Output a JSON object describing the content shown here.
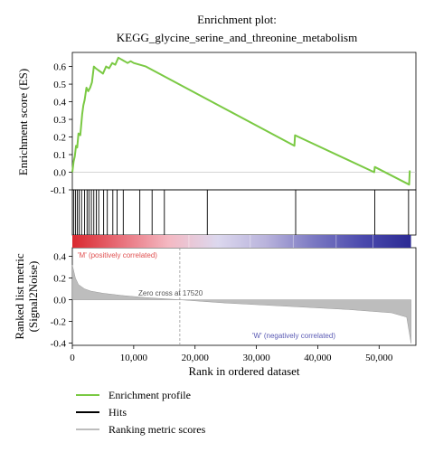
{
  "chart_data": {
    "type": "line",
    "title_line1": "Enrichment plot:",
    "title_line2": "KEGG_glycine_serine_and_threonine_metabolism",
    "xlabel": "Rank in ordered dataset",
    "x_ticks": [
      "0",
      "10,000",
      "20,000",
      "30,000",
      "40,000",
      "50,000"
    ],
    "x_tick_values": [
      0,
      10000,
      20000,
      30000,
      40000,
      50000
    ],
    "xlim": [
      0,
      56000
    ],
    "es_panel": {
      "ylabel": "Enrichment score (ES)",
      "ylim": [
        -0.1,
        0.68
      ],
      "y_ticks": [
        "0.6",
        "0.5",
        "0.4",
        "0.3",
        "0.2",
        "0.1",
        "0.0",
        "-0.1"
      ],
      "y_tick_values": [
        0.6,
        0.5,
        0.4,
        0.3,
        0.2,
        0.1,
        0.0,
        -0.1
      ],
      "x": [
        0,
        200,
        400,
        600,
        800,
        1000,
        1300,
        1600,
        1800,
        2000,
        2300,
        2600,
        2900,
        3200,
        3500,
        3800,
        4200,
        4600,
        5000,
        5500,
        6000,
        6500,
        7000,
        7500,
        8000,
        8500,
        9000,
        9500,
        10000,
        12000,
        36200,
        36300,
        49200,
        49300,
        54900,
        55000
      ],
      "y": [
        0.0,
        0.06,
        0.09,
        0.15,
        0.14,
        0.22,
        0.21,
        0.33,
        0.38,
        0.41,
        0.48,
        0.46,
        0.48,
        0.51,
        0.6,
        0.59,
        0.58,
        0.57,
        0.56,
        0.6,
        0.59,
        0.62,
        0.61,
        0.65,
        0.64,
        0.63,
        0.62,
        0.63,
        0.62,
        0.6,
        0.15,
        0.21,
        0.0,
        0.03,
        -0.07,
        0.01
      ]
    },
    "hits": [
      200,
      500,
      800,
      1100,
      1500,
      2000,
      2400,
      2700,
      3100,
      3500,
      3900,
      4300,
      5100,
      5700,
      6600,
      7300,
      8300,
      11000,
      13000,
      15000,
      22000,
      36400,
      49300,
      54800
    ],
    "ranking_bar": {
      "color_stops": [
        "#d9282f",
        "#e8707a",
        "#f4b9c3",
        "#dcd8ee",
        "#b9b3dc",
        "#7a78c2",
        "#4b4aad",
        "#2b2a93"
      ]
    },
    "metric_panel": {
      "ylabel_line1": "Ranked list metric",
      "ylabel_line2": "(Signal2Noise)",
      "ylim": [
        -0.42,
        0.48
      ],
      "y_ticks": [
        "0.4",
        "0.2",
        "0.0",
        "-0.2",
        "-0.4"
      ],
      "y_tick_values": [
        0.4,
        0.2,
        0.0,
        -0.2,
        -0.4
      ],
      "x": [
        0,
        500,
        1000,
        2000,
        3000,
        5000,
        8000,
        12000,
        17520,
        25000,
        35000,
        45000,
        52000,
        54500,
        55200
      ],
      "y": [
        0.32,
        0.2,
        0.14,
        0.1,
        0.08,
        0.06,
        0.04,
        0.02,
        0.0,
        -0.03,
        -0.06,
        -0.09,
        -0.12,
        -0.16,
        -0.4
      ],
      "zero_cross_label": "Zero cross at 17520",
      "zero_cross_x": 17520,
      "pos_label": "'M' (positively correlated)",
      "neg_label": "'W' (negatively correlated)"
    },
    "legend": [
      {
        "label": "Enrichment profile",
        "color": "#7ac943"
      },
      {
        "label": "Hits",
        "color": "#000000"
      },
      {
        "label": "Ranking metric scores",
        "color": "#bdbdbd"
      }
    ],
    "colors": {
      "es_line": "#7ac943",
      "hit": "#000000",
      "metric_fill": "#bdbdbd",
      "pos_label": "#e05050",
      "neg_label": "#5a5ab4"
    }
  }
}
